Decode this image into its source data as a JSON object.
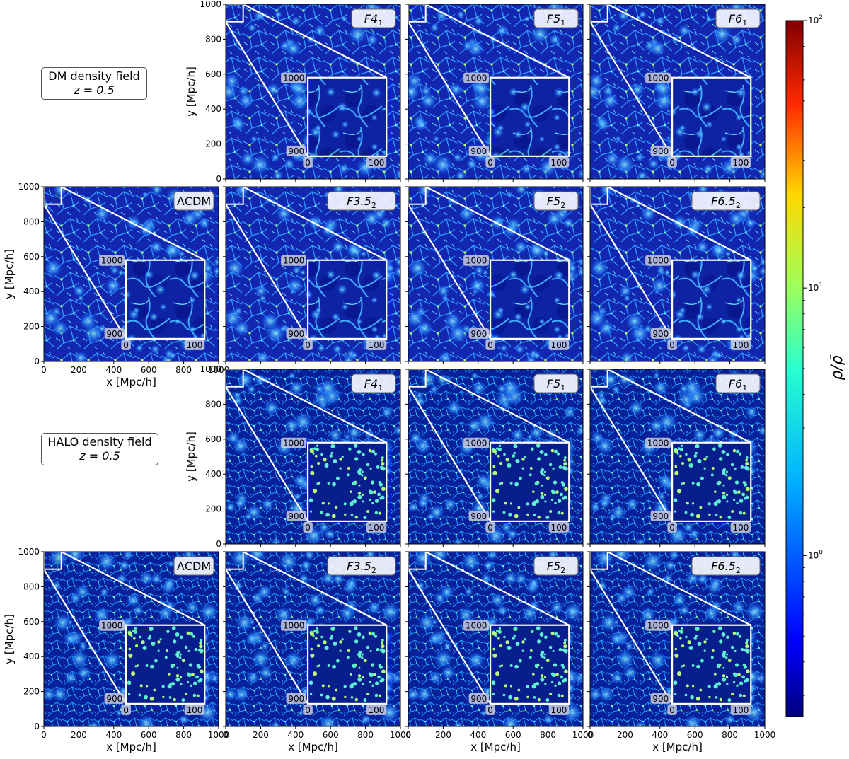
{
  "chart_data": {
    "type": "heatmap",
    "description_boxes": [
      {
        "line1": "DM density field",
        "line2": "z = 0.5"
      },
      {
        "line1": "HALO density field",
        "line2": "z = 0.5"
      }
    ],
    "xlabel": "x [Mpc/h]",
    "ylabel": "y [Mpc/h]",
    "xlim": [
      0,
      1000
    ],
    "ylim": [
      0,
      1000
    ],
    "xticks": [
      "0",
      "200",
      "400",
      "600",
      "800",
      "1000"
    ],
    "yticks": [
      "0",
      "200",
      "400",
      "600",
      "800",
      "1000"
    ],
    "inset": {
      "region_x": [
        0,
        100
      ],
      "region_y": [
        900,
        1000
      ],
      "x_labels": [
        "0",
        "100"
      ],
      "y_labels": [
        "900",
        "1000"
      ]
    },
    "colorbar": {
      "label": "ρ/ρ̄",
      "scale": "log",
      "ticks": [
        {
          "base": "10",
          "exp": "0",
          "value": 1
        },
        {
          "base": "10",
          "exp": "1",
          "value": 10
        },
        {
          "base": "10",
          "exp": "2",
          "value": 100
        }
      ],
      "range": [
        0.25,
        100
      ],
      "colormap": "jet"
    },
    "panels": [
      {
        "row": 0,
        "col": 1,
        "field": "DM",
        "model": "F4",
        "sub": "1"
      },
      {
        "row": 0,
        "col": 2,
        "field": "DM",
        "model": "F5",
        "sub": "1"
      },
      {
        "row": 0,
        "col": 3,
        "field": "DM",
        "model": "F6",
        "sub": "1"
      },
      {
        "row": 1,
        "col": 0,
        "field": "DM",
        "model": "ΛCDM",
        "sub": ""
      },
      {
        "row": 1,
        "col": 1,
        "field": "DM",
        "model": "F3.5",
        "sub": "2"
      },
      {
        "row": 1,
        "col": 2,
        "field": "DM",
        "model": "F5",
        "sub": "2"
      },
      {
        "row": 1,
        "col": 3,
        "field": "DM",
        "model": "F6.5",
        "sub": "2"
      },
      {
        "row": 2,
        "col": 1,
        "field": "HALO",
        "model": "F4",
        "sub": "1"
      },
      {
        "row": 2,
        "col": 2,
        "field": "HALO",
        "model": "F5",
        "sub": "1"
      },
      {
        "row": 2,
        "col": 3,
        "field": "HALO",
        "model": "F6",
        "sub": "1"
      },
      {
        "row": 3,
        "col": 0,
        "field": "HALO",
        "model": "ΛCDM",
        "sub": ""
      },
      {
        "row": 3,
        "col": 1,
        "field": "HALO",
        "model": "F3.5",
        "sub": "2"
      },
      {
        "row": 3,
        "col": 2,
        "field": "HALO",
        "model": "F5",
        "sub": "2"
      },
      {
        "row": 3,
        "col": 3,
        "field": "HALO",
        "model": "F6.5",
        "sub": "2"
      }
    ]
  }
}
